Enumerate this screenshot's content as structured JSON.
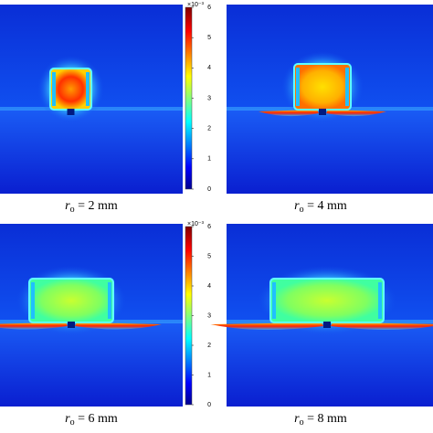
{
  "colorbar": {
    "scale_label": "×10⁻³",
    "range": [
      0,
      6
    ],
    "ticks": [
      0,
      1,
      2,
      3,
      4,
      5,
      6
    ]
  },
  "panels": [
    {
      "variable": "r",
      "subscript": "o",
      "text": " = 2 mm"
    },
    {
      "variable": "r",
      "subscript": "o",
      "text": " = 4 mm"
    },
    {
      "variable": "r",
      "subscript": "o",
      "text": " = 6 mm"
    },
    {
      "variable": "r",
      "subscript": "o",
      "text": " = 8 mm"
    }
  ]
}
